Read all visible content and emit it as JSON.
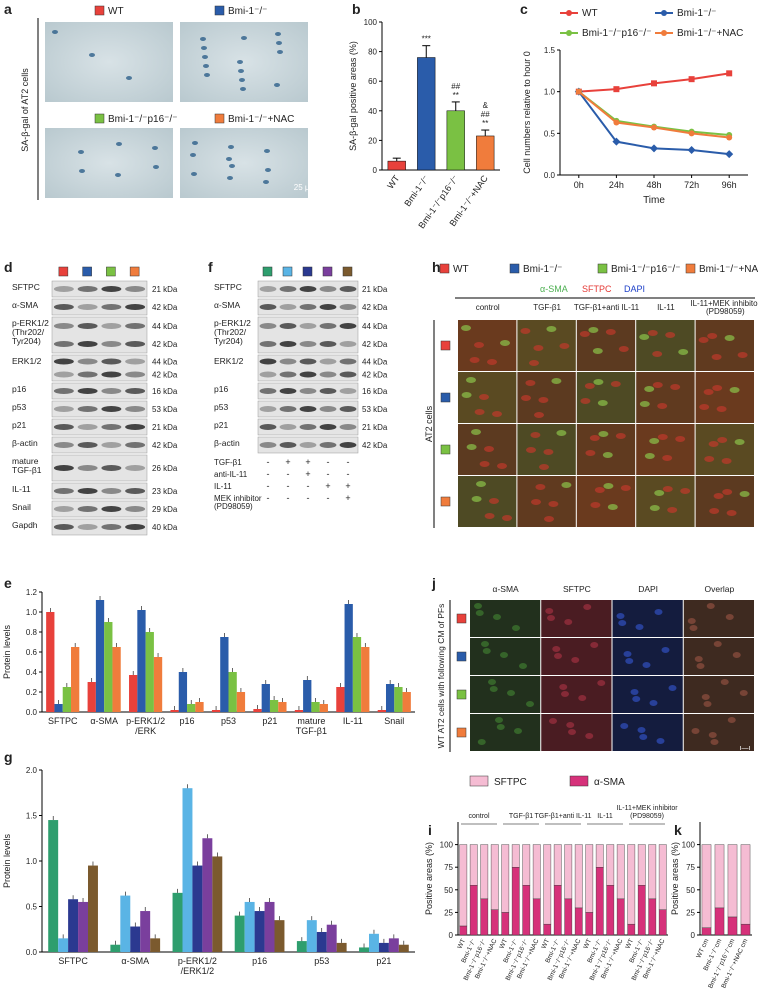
{
  "panel_a": {
    "letter": "a",
    "legend": [
      {
        "name": "WT",
        "color": "#e8413b"
      },
      {
        "name": "Bmi-1⁻/⁻",
        "color": "#2a5caa"
      },
      {
        "name": "Bmi-1⁻/⁻p16⁻/⁻",
        "color": "#7ac143"
      },
      {
        "name": "Bmi-1⁻/⁻+NAC",
        "color": "#f07c3c"
      }
    ],
    "side_label": "SA-β-gal of AT2 cells",
    "scale_bar": "25 μm"
  },
  "chart_b": {
    "type": "bar",
    "letter": "b",
    "ylabel": "SA-β-gal positive areas (%)",
    "categories": [
      "WT",
      "Bmi-1⁻/⁻",
      "Bmi-1⁻/⁻p16⁻/⁻",
      "Bmi-1⁻/⁻+NAC"
    ],
    "values": [
      6,
      76,
      40,
      23
    ],
    "errors": [
      2,
      8,
      6,
      4
    ],
    "colors": [
      "#e8413b",
      "#2a5caa",
      "#7ac143",
      "#f07c3c"
    ],
    "ylim": [
      0,
      100
    ],
    "yticks": [
      0,
      20,
      40,
      60,
      80,
      100
    ],
    "annotations": [
      [],
      [
        "***"
      ],
      [
        "##",
        "**"
      ],
      [
        "&",
        "##",
        "**"
      ]
    ]
  },
  "chart_c": {
    "type": "line",
    "letter": "c",
    "ylabel": "Cell numbers relative to hour 0",
    "xlabel": "Time",
    "categories": [
      "0h",
      "24h",
      "48h",
      "72h",
      "96h"
    ],
    "ylim": [
      0,
      1.5
    ],
    "yticks": [
      {
        "value": 0,
        "label": "0.0"
      },
      {
        "value": 0.5,
        "label": "0.5"
      },
      {
        "value": 1,
        "label": "1.0"
      },
      {
        "value": 1.5,
        "label": "1.5"
      }
    ],
    "series": [
      {
        "name": "WT",
        "color": "#e8413b",
        "values": [
          1,
          1.03,
          1.1,
          1.15,
          1.22
        ]
      },
      {
        "name": "Bmi-1⁻/⁻",
        "color": "#2a5caa",
        "values": [
          1,
          0.4,
          0.32,
          0.3,
          0.25
        ]
      },
      {
        "name": "Bmi-1⁻/⁻p16⁻/⁻",
        "color": "#7ac143",
        "values": [
          1,
          0.65,
          0.58,
          0.52,
          0.48
        ]
      },
      {
        "name": "Bmi-1⁻/⁻+NAC",
        "color": "#f07c3c",
        "values": [
          1,
          0.63,
          0.57,
          0.5,
          0.45
        ]
      }
    ]
  },
  "blot_d": {
    "letter": "d",
    "lane_colors": [
      "#e8413b",
      "#2a5caa",
      "#7ac143",
      "#f07c3c"
    ],
    "rows": [
      {
        "name": [
          "SFTPC"
        ],
        "kda": [
          "21 kDa"
        ]
      },
      {
        "name": [
          "α-SMA"
        ],
        "kda": [
          "42 kDa"
        ]
      },
      {
        "name": [
          "p-ERK1/2",
          "(Thr202/",
          "Tyr204)"
        ],
        "kda": [
          "44 kDa",
          "42 kDa"
        ]
      },
      {
        "name": [
          "ERK1/2"
        ],
        "kda": [
          "44 kDa",
          "42 kDa"
        ]
      },
      {
        "name": [
          "p16"
        ],
        "kda": [
          "16 kDa"
        ]
      },
      {
        "name": [
          "p53"
        ],
        "kda": [
          "53 kDa"
        ]
      },
      {
        "name": [
          "p21"
        ],
        "kda": [
          "21 kDa"
        ]
      },
      {
        "name": [
          "β-actin"
        ],
        "kda": [
          "42 kDa"
        ]
      },
      {
        "name": [
          "mature",
          "TGF-β1"
        ],
        "kda": [
          "26 kDa"
        ]
      },
      {
        "name": [
          "IL-11"
        ],
        "kda": [
          "23 kDa"
        ]
      },
      {
        "name": [
          "Snail"
        ],
        "kda": [
          "29 kDa"
        ]
      },
      {
        "name": [
          "Gapdh"
        ],
        "kda": [
          "40 kDa"
        ]
      }
    ]
  },
  "blot_f": {
    "letter": "f",
    "lane_colors": [
      "#2e9e6e",
      "#5ab4e5",
      "#2b3990",
      "#7a3f9d",
      "#7b5a2e"
    ],
    "rows": [
      {
        "name": [
          "SFTPC"
        ],
        "kda": [
          "21 kDa"
        ]
      },
      {
        "name": [
          "α-SMA"
        ],
        "kda": [
          "42 kDa"
        ]
      },
      {
        "name": [
          "p-ERK1/2",
          "(Thr202/",
          "Tyr204)"
        ],
        "kda": [
          "44 kDa",
          "42 kDa"
        ]
      },
      {
        "name": [
          "ERK1/2"
        ],
        "kda": [
          "44 kDa",
          "42 kDa"
        ]
      },
      {
        "name": [
          "p16"
        ],
        "kda": [
          "16 kDa"
        ]
      },
      {
        "name": [
          "p53"
        ],
        "kda": [
          "53 kDa"
        ]
      },
      {
        "name": [
          "p21"
        ],
        "kda": [
          "21 kDa"
        ]
      },
      {
        "name": [
          "β-actin"
        ],
        "kda": [
          "42 kDa"
        ]
      }
    ],
    "conditions": [
      {
        "name": [
          "TGF-β1"
        ],
        "signs": [
          "-",
          "+",
          "+",
          "-",
          "-"
        ]
      },
      {
        "name": [
          "anti-IL-11"
        ],
        "signs": [
          "-",
          "-",
          "+",
          "-",
          "-"
        ]
      },
      {
        "name": [
          "IL-11"
        ],
        "signs": [
          "-",
          "-",
          "-",
          "+",
          "+"
        ]
      },
      {
        "name": [
          "MEK inhibitor",
          "(PD98059)"
        ],
        "signs": [
          "-",
          "-",
          "-",
          "-",
          "+"
        ]
      }
    ]
  },
  "panel_h": {
    "letter": "h",
    "stains": [
      {
        "text": "α-SMA",
        "color": "#4caf50"
      },
      {
        "text": "SFTPC",
        "color": "#e53935"
      },
      {
        "text": "DAPI",
        "color": "#1e40c8"
      }
    ],
    "columns": [
      [
        "control"
      ],
      [
        "TGF-β1"
      ],
      [
        "TGF-β1+anti IL-11"
      ],
      [
        "IL-11"
      ],
      [
        "IL-11+MEK inhibitor",
        "(PD98059)"
      ]
    ],
    "side_label": "AT2 cells"
  },
  "chart_e": {
    "type": "grouped-bar",
    "letter": "e",
    "ylabel": "Protein levels",
    "categories": [
      [
        "SFTPC"
      ],
      [
        "α-SMA"
      ],
      [
        "p-ERK1/2",
        "/ERK"
      ],
      [
        "p16"
      ],
      [
        "p53"
      ],
      [
        "p21"
      ],
      [
        "mature",
        "TGF-β1"
      ],
      [
        "IL-11"
      ],
      [
        "Snail"
      ]
    ],
    "ylim": [
      0,
      1.2
    ],
    "yticks": [
      {
        "value": 0,
        "label": "0.0"
      },
      {
        "value": 0.2,
        "label": "0.2"
      },
      {
        "value": 0.4,
        "label": "0.4"
      },
      {
        "value": 0.6,
        "label": "0.6"
      },
      {
        "value": 0.8,
        "label": "0.8"
      },
      {
        "value": 1,
        "label": "1.0"
      },
      {
        "value": 1.2,
        "label": "1.2"
      }
    ],
    "series": [
      {
        "color": "#e8413b",
        "values": [
          1.0,
          0.3,
          0.37,
          0.02,
          0.02,
          0.03,
          0.02,
          0.25,
          0.02
        ]
      },
      {
        "color": "#2a5caa",
        "values": [
          0.08,
          1.12,
          1.02,
          0.4,
          0.75,
          0.28,
          0.32,
          1.08,
          0.28
        ]
      },
      {
        "color": "#7ac143",
        "values": [
          0.25,
          0.9,
          0.8,
          0.08,
          0.4,
          0.12,
          0.1,
          0.75,
          0.25
        ]
      },
      {
        "color": "#f07c3c",
        "values": [
          0.65,
          0.65,
          0.55,
          0.1,
          0.2,
          0.1,
          0.08,
          0.65,
          0.2
        ]
      }
    ]
  },
  "panel_j": {
    "letter": "j",
    "columns": [
      "α-SMA",
      "SFTPC",
      "DAPI",
      "Overlap"
    ],
    "side_label": "WT AT2 cells with following CM of PFs",
    "scale_bar": "ı—ı"
  },
  "chart_g": {
    "type": "grouped-bar",
    "letter": "g",
    "ylabel": "Protein levels",
    "categories": [
      [
        "SFTPC"
      ],
      [
        "α-SMA"
      ],
      [
        "p-ERK1/2",
        "/ERK1/2"
      ],
      [
        "p16"
      ],
      [
        "p53"
      ],
      [
        "p21"
      ]
    ],
    "ylim": [
      0,
      2.0
    ],
    "yticks": [
      {
        "value": 0,
        "label": "0.0"
      },
      {
        "value": 0.5,
        "label": "0.5"
      },
      {
        "value": 1,
        "label": "1.0"
      },
      {
        "value": 1.5,
        "label": "1.5"
      },
      {
        "value": 2,
        "label": "2.0"
      }
    ],
    "series": [
      {
        "color": "#2e9e6e",
        "values": [
          1.45,
          0.08,
          0.65,
          0.4,
          0.12,
          0.05
        ]
      },
      {
        "color": "#5ab4e5",
        "values": [
          0.15,
          0.62,
          1.8,
          0.55,
          0.35,
          0.2
        ]
      },
      {
        "color": "#2b3990",
        "values": [
          0.58,
          0.28,
          0.95,
          0.45,
          0.22,
          0.1
        ]
      },
      {
        "color": "#7a3f9d",
        "values": [
          0.55,
          0.45,
          1.25,
          0.55,
          0.3,
          0.15
        ]
      },
      {
        "color": "#7b5a2e",
        "values": [
          0.95,
          0.15,
          1.05,
          0.35,
          0.1,
          0.08
        ]
      }
    ]
  },
  "chart_i": {
    "type": "stacked-bar",
    "letter": "i",
    "ylabel": "Positive areas (%)",
    "categories": [
      "WT",
      "Bmi-1⁻/⁻",
      "Bmi-1⁻/⁻p16⁻/⁻",
      "Bmi-1⁻/⁻+NAC"
    ],
    "groups": [
      [
        "control"
      ],
      [
        "TGF-β1"
      ],
      [
        "TGF-β1+anti IL-11"
      ],
      [
        "IL-11"
      ],
      [
        "IL-11+MEK inhibitor",
        "(PD98059)"
      ]
    ],
    "ylim": [
      0,
      125
    ],
    "yticks": [
      0,
      25,
      50,
      75,
      100
    ],
    "series": [
      {
        "name": "SFTPC",
        "color": "#f5bcd3",
        "values": [
          [
            90,
            45,
            60,
            72
          ],
          [
            75,
            25,
            45,
            60
          ],
          [
            88,
            45,
            60,
            70
          ],
          [
            75,
            25,
            45,
            60
          ],
          [
            88,
            45,
            60,
            72
          ]
        ]
      },
      {
        "name": "α-SMA",
        "color": "#d6317a",
        "values": [
          [
            10,
            55,
            40,
            28
          ],
          [
            25,
            75,
            55,
            40
          ],
          [
            12,
            55,
            40,
            30
          ],
          [
            25,
            75,
            55,
            40
          ],
          [
            12,
            55,
            40,
            28
          ]
        ]
      }
    ]
  },
  "chart_k": {
    "type": "stacked-bar",
    "letter": "k",
    "ylabel": "Positive areas (%)",
    "categories": [
      "WT cm",
      "Bmi-1⁻/⁻cm",
      "Bmi-1⁻/⁻p16⁻/⁻cm",
      "Bmi-1⁻/⁻+NAC cm"
    ],
    "ylim": [
      0,
      125
    ],
    "yticks": [
      0,
      25,
      50,
      75,
      100
    ],
    "series": [
      {
        "name": "SFTPC",
        "color": "#f5bcd3",
        "values": [
          92,
          70,
          80,
          88
        ]
      },
      {
        "name": "α-SMA",
        "color": "#d6317a",
        "values": [
          8,
          30,
          20,
          12
        ]
      }
    ]
  }
}
